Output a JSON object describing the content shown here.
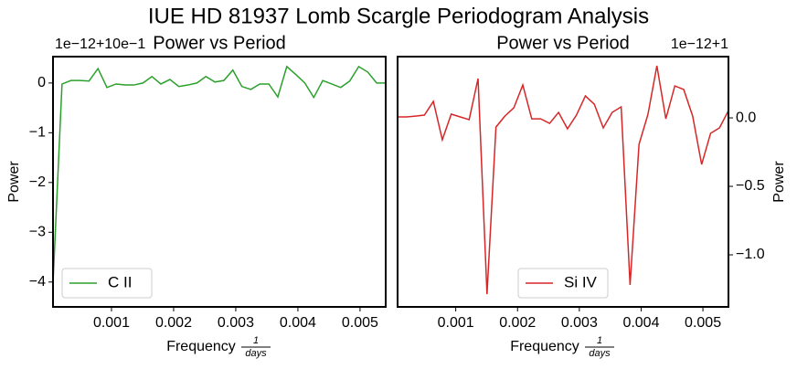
{
  "title": "IUE HD 81937 Lomb Scargle Periodogram Analysis",
  "chart_data": [
    {
      "type": "line",
      "title": "Power vs Period",
      "offset_label": "1e−12+10e−1",
      "xlabel": {
        "text": "Frequency",
        "numerator": "1",
        "denominator": "days"
      },
      "ylabel": "Power",
      "legend": "lower left",
      "x": [
        5.9e-05,
        0.000204,
        0.000348,
        0.000493,
        0.000638,
        0.000783,
        0.000927,
        0.001072,
        0.001217,
        0.001361,
        0.001506,
        0.001651,
        0.001795,
        0.00194,
        0.002085,
        0.00223,
        0.002374,
        0.002519,
        0.002664,
        0.002808,
        0.002953,
        0.003098,
        0.003242,
        0.003387,
        0.003532,
        0.003677,
        0.003821,
        0.003966,
        0.004111,
        0.004255,
        0.0044,
        0.004545,
        0.004689,
        0.004834,
        0.004979,
        0.005124,
        0.005268,
        0.005413
      ],
      "series": [
        {
          "name": "C II",
          "color": "#2ca02c",
          "values": [
            -4.03,
            -0.02,
            0.05,
            0.05,
            0.04,
            0.29,
            -0.09,
            -0.02,
            -0.04,
            -0.04,
            0,
            0.13,
            -0.02,
            0.07,
            -0.07,
            -0.04,
            0,
            0.13,
            0.02,
            0.05,
            0.26,
            -0.07,
            -0.13,
            -0.02,
            -0.02,
            -0.28,
            0.33,
            0.17,
            0,
            -0.29,
            0.05,
            -0.02,
            -0.09,
            0.04,
            0.33,
            0.22,
            0,
            0
          ]
        }
      ],
      "xlim": [
        5.9e-05,
        0.005413
      ],
      "xticks": [
        0.001,
        0.002,
        0.003,
        0.004,
        0.005
      ],
      "ylim": [
        -4.5,
        0.53
      ],
      "yticks": [
        {
          "value": 0,
          "label": "0"
        },
        {
          "value": -1,
          "label": "−1"
        },
        {
          "value": -2,
          "label": "−2"
        },
        {
          "value": -3,
          "label": "−3"
        },
        {
          "value": -4,
          "label": "−4"
        }
      ]
    },
    {
      "type": "line",
      "title": "Power vs Period",
      "offset_label": "1e−12+1",
      "xlabel": {
        "text": "Frequency",
        "numerator": "1",
        "denominator": "days"
      },
      "ylabel": "Power",
      "legend": "lower center",
      "x": [
        5.9e-05,
        0.000204,
        0.000348,
        0.000493,
        0.000638,
        0.000783,
        0.000927,
        0.001072,
        0.001217,
        0.001361,
        0.001506,
        0.001651,
        0.001795,
        0.00194,
        0.002085,
        0.00223,
        0.002374,
        0.002519,
        0.002664,
        0.002808,
        0.002953,
        0.003098,
        0.003242,
        0.003387,
        0.003532,
        0.003677,
        0.003821,
        0.003966,
        0.004111,
        0.004255,
        0.0044,
        0.004545,
        0.004689,
        0.004834,
        0.004979,
        0.005124,
        0.005268,
        0.005413
      ],
      "series": [
        {
          "name": "Si IV",
          "color": "#d62728",
          "axis": "y2",
          "values": [
            0.007,
            0.007,
            0.013,
            0.02,
            0.12,
            -0.16,
            0.027,
            0.007,
            -0.013,
            0.287,
            -1.287,
            -0.067,
            0.013,
            0.073,
            0.24,
            -0.007,
            -0.007,
            -0.04,
            0.04,
            -0.08,
            0.02,
            0.16,
            0.1,
            -0.073,
            0.04,
            0.08,
            -1.22,
            -0.193,
            0.027,
            0.38,
            -0.007,
            0.233,
            0.207,
            0.013,
            -0.34,
            -0.113,
            -0.073,
            0.053
          ]
        }
      ],
      "xlim": [
        5.9e-05,
        0.005413
      ],
      "xticks": [
        0.001,
        0.002,
        0.003,
        0.004,
        0.005
      ],
      "y2lim": [
        -1.38,
        0.447
      ],
      "y2ticks": [
        {
          "value": 0,
          "label": "0.0"
        },
        {
          "value": -0.5,
          "label": "−0.5"
        },
        {
          "value": -1,
          "label": "−1.0"
        }
      ]
    }
  ]
}
